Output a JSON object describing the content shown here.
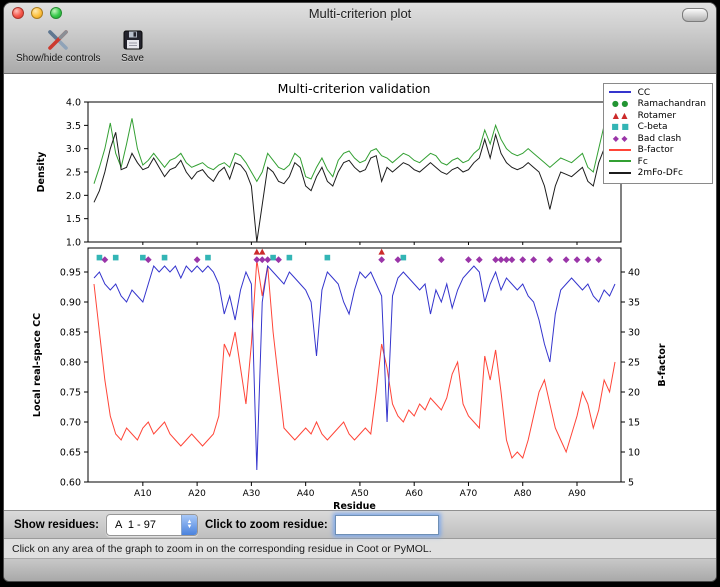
{
  "window": {
    "title": "Multi-criterion plot",
    "toolbar": [
      {
        "label": "Show/hide controls"
      },
      {
        "label": "Save"
      }
    ]
  },
  "controls": {
    "show_residues_label": "Show residues:",
    "residue_range_value": "A  1 - 97",
    "zoom_label": "Click to zoom residue:",
    "zoom_input_value": ""
  },
  "status_bar": "Click on any area of the graph to zoom in on the corresponding residue in Coot or PyMOL.",
  "chart_data": {
    "title": "Multi-criterion validation",
    "xlabel": "Residue",
    "x_count": 97,
    "xticks": [
      10,
      20,
      30,
      40,
      50,
      60,
      70,
      80,
      90
    ],
    "xtick_labels": [
      "A10",
      "A20",
      "A30",
      "A40",
      "A50",
      "A60",
      "A70",
      "A80",
      "A90"
    ],
    "top_plot": {
      "type": "line",
      "ylabel": "Density",
      "ylim": [
        1.0,
        4.0
      ],
      "yticks": [
        1.0,
        1.5,
        2.0,
        2.5,
        3.0,
        3.5,
        4.0
      ],
      "series": [
        {
          "name": "Fc",
          "color": "#33a033",
          "values": [
            2.25,
            2.6,
            3.0,
            3.55,
            2.9,
            2.6,
            3.1,
            3.65,
            3.0,
            2.65,
            2.75,
            2.9,
            2.75,
            2.6,
            2.75,
            2.8,
            2.9,
            2.7,
            2.6,
            2.65,
            2.7,
            2.6,
            2.55,
            2.65,
            2.7,
            2.6,
            2.9,
            2.85,
            2.7,
            2.5,
            2.3,
            2.5,
            2.9,
            2.75,
            2.6,
            2.55,
            2.65,
            2.9,
            2.8,
            2.4,
            2.35,
            2.6,
            2.8,
            2.55,
            2.4,
            2.75,
            2.9,
            2.95,
            2.8,
            2.7,
            2.75,
            2.95,
            3.0,
            2.85,
            2.8,
            2.7,
            2.8,
            2.9,
            2.85,
            2.75,
            2.7,
            2.8,
            2.9,
            2.85,
            2.7,
            2.65,
            2.75,
            2.8,
            2.7,
            2.75,
            2.9,
            3.0,
            3.4,
            3.1,
            3.5,
            3.2,
            3.0,
            2.9,
            2.85,
            2.9,
            3.0,
            2.9,
            2.8,
            2.7,
            2.6,
            2.7,
            2.8,
            2.75,
            2.7,
            2.8,
            2.9,
            2.6,
            2.5,
            3.0,
            3.5,
            3.2,
            2.95
          ]
        },
        {
          "name": "2mFo-DFc",
          "color": "#1c1c1c",
          "values": [
            1.85,
            2.1,
            2.5,
            3.0,
            3.35,
            2.55,
            2.6,
            2.9,
            2.7,
            2.55,
            2.6,
            2.8,
            2.6,
            2.4,
            2.55,
            2.6,
            2.75,
            2.5,
            2.35,
            2.5,
            2.55,
            2.4,
            2.3,
            2.5,
            2.6,
            2.35,
            2.7,
            2.65,
            2.5,
            2.2,
            1.0,
            1.8,
            2.6,
            2.5,
            2.3,
            2.25,
            2.4,
            2.7,
            2.6,
            2.2,
            2.1,
            2.4,
            2.6,
            2.3,
            2.2,
            2.5,
            2.7,
            2.75,
            2.6,
            2.5,
            2.55,
            2.8,
            2.85,
            2.3,
            2.6,
            2.5,
            2.6,
            2.7,
            2.65,
            2.55,
            2.5,
            2.6,
            2.7,
            2.6,
            2.5,
            2.45,
            2.55,
            2.6,
            2.5,
            2.55,
            2.7,
            2.8,
            3.2,
            2.8,
            3.3,
            2.9,
            2.7,
            2.6,
            2.55,
            2.6,
            2.7,
            2.6,
            2.5,
            2.2,
            1.7,
            2.2,
            2.5,
            2.45,
            2.4,
            2.5,
            2.6,
            2.3,
            2.2,
            2.7,
            3.0,
            2.8,
            2.9
          ]
        }
      ]
    },
    "bottom_plot": {
      "type": "line",
      "ylabel_left": "Local real-space CC",
      "ylabel_right": "B-factor",
      "ylim_left": [
        0.6,
        0.99
      ],
      "yticks_left": [
        0.6,
        0.65,
        0.7,
        0.75,
        0.8,
        0.85,
        0.9,
        0.95
      ],
      "ylim_right": [
        5,
        44
      ],
      "yticks_right": [
        5,
        10,
        15,
        20,
        25,
        30,
        35,
        40
      ],
      "series_left": [
        {
          "name": "CC",
          "color": "#3535cd",
          "values": [
            0.94,
            0.95,
            0.93,
            0.92,
            0.93,
            0.91,
            0.9,
            0.92,
            0.91,
            0.9,
            0.93,
            0.96,
            0.95,
            0.96,
            0.95,
            0.96,
            0.94,
            0.96,
            0.95,
            0.96,
            0.95,
            0.96,
            0.95,
            0.93,
            0.88,
            0.91,
            0.87,
            0.92,
            0.95,
            0.93,
            0.62,
            0.9,
            0.96,
            0.95,
            0.94,
            0.93,
            0.95,
            0.94,
            0.93,
            0.92,
            0.9,
            0.81,
            0.92,
            0.95,
            0.94,
            0.93,
            0.9,
            0.88,
            0.92,
            0.95,
            0.94,
            0.95,
            0.93,
            0.91,
            0.7,
            0.91,
            0.94,
            0.95,
            0.94,
            0.93,
            0.92,
            0.93,
            0.88,
            0.92,
            0.9,
            0.93,
            0.89,
            0.92,
            0.94,
            0.95,
            0.96,
            0.95,
            0.9,
            0.93,
            0.95,
            0.92,
            0.94,
            0.93,
            0.92,
            0.93,
            0.91,
            0.9,
            0.87,
            0.83,
            0.8,
            0.88,
            0.92,
            0.93,
            0.94,
            0.93,
            0.92,
            0.93,
            0.91,
            0.9,
            0.92,
            0.91,
            0.93
          ]
        }
      ],
      "series_right": [
        {
          "name": "B-factor",
          "color": "#ff4538",
          "values": [
            38,
            30,
            22,
            16,
            13,
            12,
            14,
            13,
            12,
            14,
            15,
            13,
            14,
            15,
            13,
            12,
            11,
            12,
            13,
            12,
            11,
            12,
            13,
            16,
            28,
            26,
            30,
            24,
            18,
            28,
            42,
            36,
            41,
            30,
            22,
            14,
            13,
            12,
            13,
            14,
            13,
            15,
            13,
            12,
            13,
            14,
            15,
            13,
            12,
            13,
            14,
            13,
            20,
            28,
            24,
            18,
            16,
            15,
            17,
            16,
            18,
            17,
            19,
            18,
            17,
            19,
            23,
            25,
            18,
            16,
            15,
            14,
            26,
            22,
            27,
            20,
            12,
            9,
            10,
            9,
            12,
            16,
            20,
            22,
            18,
            14,
            12,
            10,
            13,
            16,
            20,
            18,
            14,
            17,
            22,
            20,
            25
          ]
        }
      ]
    },
    "markers": {
      "ramachandran": {
        "shape": "circle",
        "color": "#229533",
        "residues": []
      },
      "rotamer": {
        "shape": "triangle",
        "color": "#cc2a2a",
        "residues": [
          31,
          32,
          54
        ]
      },
      "cbeta": {
        "shape": "square",
        "color": "#33b5b5",
        "residues": [
          2,
          5,
          10,
          14,
          22,
          34,
          37,
          44,
          58
        ]
      },
      "bad_clash": {
        "shape": "diamond",
        "color": "#9a35a8",
        "residues": [
          3,
          11,
          20,
          31,
          32,
          33,
          35,
          54,
          57,
          65,
          70,
          72,
          75,
          76,
          77,
          78,
          80,
          82,
          85,
          88,
          90,
          92,
          94
        ]
      }
    },
    "legend": [
      {
        "label": "CC",
        "type": "line",
        "color": "#3535cd"
      },
      {
        "label": "Ramachandran",
        "type": "circle",
        "color": "#229533"
      },
      {
        "label": "Rotamer",
        "type": "triangle",
        "color": "#cc2a2a"
      },
      {
        "label": "C-beta",
        "type": "square",
        "color": "#33b5b5"
      },
      {
        "label": "Bad clash",
        "type": "diamond",
        "color": "#9a35a8"
      },
      {
        "label": "B-factor",
        "type": "line",
        "color": "#ff4538"
      },
      {
        "label": "Fc",
        "type": "line",
        "color": "#33a033"
      },
      {
        "label": "2mFo-DFc",
        "type": "line",
        "color": "#1c1c1c"
      }
    ]
  }
}
